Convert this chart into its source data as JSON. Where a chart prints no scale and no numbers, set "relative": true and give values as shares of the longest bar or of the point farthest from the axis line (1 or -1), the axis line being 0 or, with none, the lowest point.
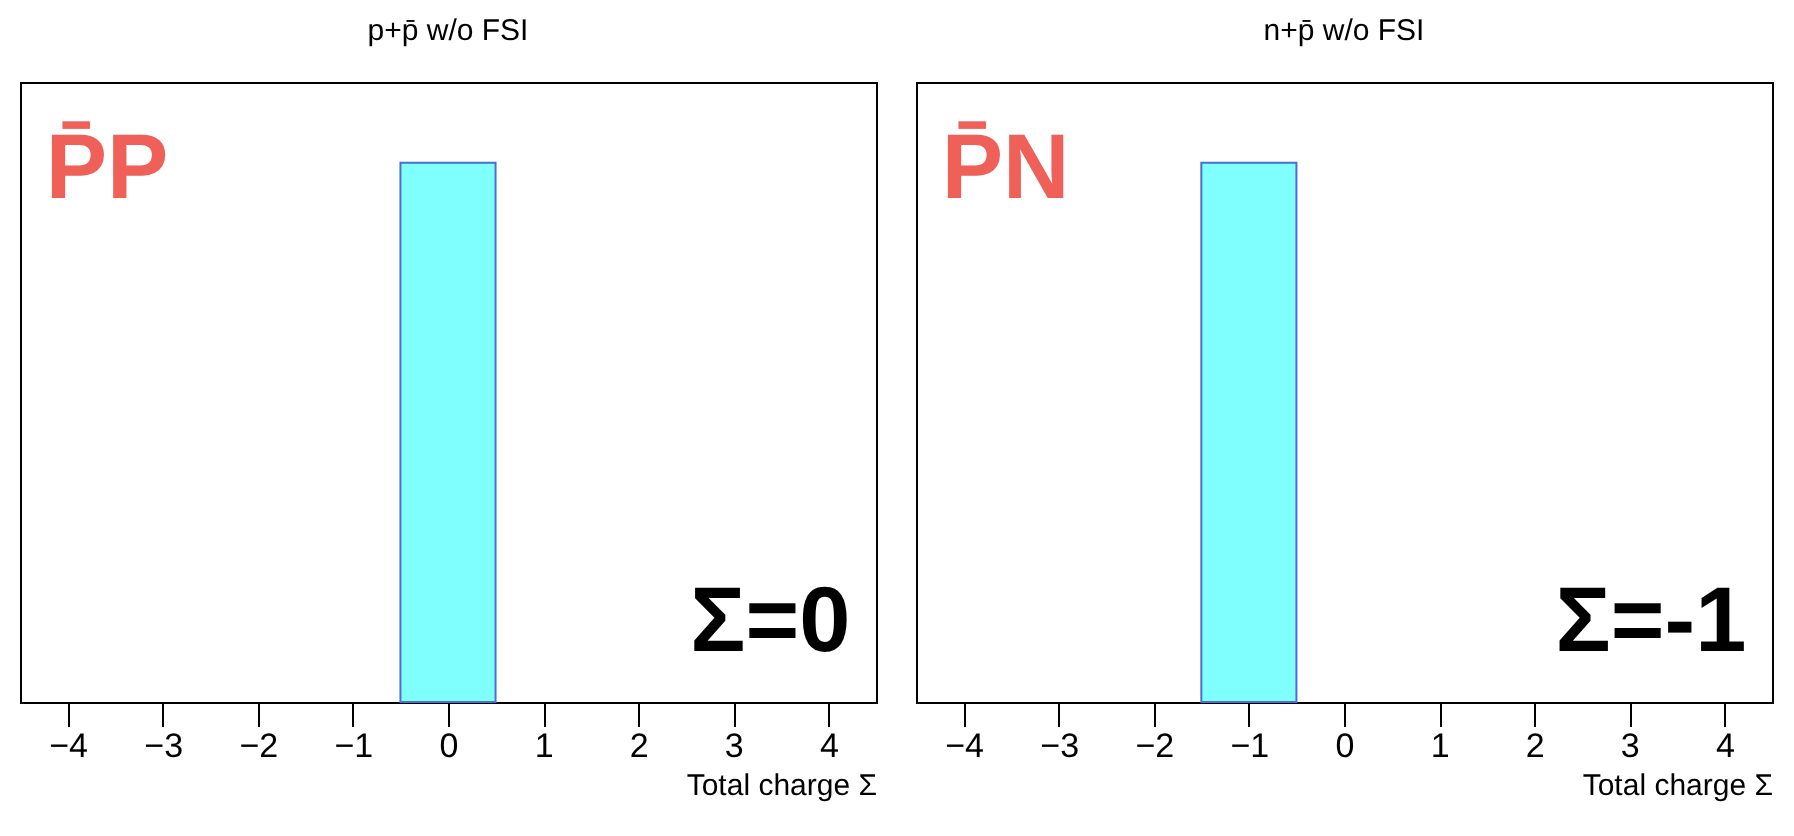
{
  "chart_data": [
    {
      "type": "bar",
      "title": "p+p̄ w/o FSI",
      "xlabel": "Total charge Σ",
      "x": [
        0
      ],
      "values": [
        1
      ],
      "relative": true,
      "color": "#80ffff",
      "xlim": [
        -4.5,
        4.5
      ],
      "xticks": [
        {
          "value": -4,
          "label": "−4"
        },
        {
          "value": -3,
          "label": "−3"
        },
        {
          "value": -2,
          "label": "−2"
        },
        {
          "value": -1,
          "label": "−1"
        },
        0,
        1,
        2,
        3,
        4
      ],
      "annotations": [
        "P̄P",
        "Σ=0"
      ]
    },
    {
      "type": "bar",
      "title": "n+p̄ w/o FSI",
      "xlabel": "Total charge Σ",
      "x": [
        -1
      ],
      "values": [
        1
      ],
      "relative": true,
      "color": "#80ffff",
      "xlim": [
        -4.5,
        4.5
      ],
      "xticks": [
        {
          "value": -4,
          "label": "−4"
        },
        {
          "value": -3,
          "label": "−3"
        },
        {
          "value": -2,
          "label": "−2"
        },
        {
          "value": -1,
          "label": "−1"
        },
        0,
        1,
        2,
        3,
        4
      ],
      "annotations": [
        "P̄N",
        "Σ=-1"
      ]
    }
  ]
}
